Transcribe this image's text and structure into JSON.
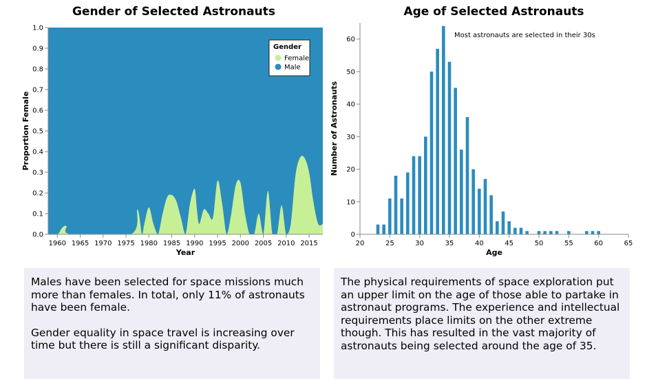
{
  "left": {
    "title": "Gender of Selected Astronauts",
    "text_paragraphs": [
      "Males have been selected for space missions much more than females. In total, only 11% of astronauts have been female.",
      "Gender equality in space travel is increasing over time but there is still a significant disparity."
    ]
  },
  "right": {
    "title": "Age of Selected Astronauts",
    "text_paragraphs": [
      "The physical requirements of space exploration put an upper limit on the age of those able to partake in astronaut programs. The experience and intellectual requirements place limits on the other extreme though. This has resulted in the vast majority of astronauts being selected around the age of 35."
    ]
  },
  "chart_data": [
    {
      "type": "area",
      "title": "Gender of Selected Astronauts",
      "xlabel": "Year",
      "ylabel": "Proportion Female",
      "xlim": [
        1958,
        2018
      ],
      "ylim": [
        0,
        1
      ],
      "xticks": [
        1960,
        1965,
        1970,
        1975,
        1980,
        1985,
        1990,
        1995,
        2000,
        2005,
        2010,
        2015
      ],
      "yticks": [
        0.0,
        0.1,
        0.2,
        0.3,
        0.4,
        0.5,
        0.6,
        0.7,
        0.8,
        0.9,
        1.0
      ],
      "legend": {
        "title": "Gender",
        "position": "top-right"
      },
      "series": [
        {
          "name": "Female",
          "color": "#c7ef96",
          "x": [
            1958,
            1960,
            1961,
            1962,
            1963,
            1976,
            1977.5,
            1978.5,
            1979,
            1980,
            1981,
            1982,
            1983,
            1984,
            1985,
            1986,
            1987,
            1988,
            1989,
            1990,
            1990.5,
            1991,
            1992,
            1993,
            1994,
            1995,
            1996,
            1997,
            1998,
            1999,
            2000,
            2001,
            2002,
            2003,
            2004,
            2005,
            2006,
            2007,
            2008,
            2009,
            2010,
            2011,
            2012,
            2013,
            2014,
            2015,
            2016,
            2017,
            2018
          ],
          "values": [
            0,
            0,
            0.03,
            0.04,
            0,
            0,
            0.12,
            0,
            0.05,
            0.13,
            0.05,
            0,
            0.1,
            0.18,
            0.19,
            0.16,
            0.08,
            0,
            0.15,
            0.22,
            0.12,
            0.05,
            0.12,
            0.1,
            0.08,
            0.26,
            0.15,
            0,
            0.1,
            0.24,
            0.25,
            0.1,
            0,
            0,
            0.1,
            0,
            0.21,
            0,
            0,
            0.14,
            0,
            0.05,
            0.28,
            0.37,
            0.37,
            0.3,
            0.15,
            0.05,
            0.05
          ]
        },
        {
          "name": "Male",
          "color": "#2b8cbe",
          "fill": "remainder"
        }
      ]
    },
    {
      "type": "bar",
      "title": "Age of Selected Astronauts",
      "xlabel": "Age",
      "ylabel": "Number of Astronauts",
      "xlim": [
        20,
        65
      ],
      "ylim": [
        0,
        65
      ],
      "xticks": [
        20,
        25,
        30,
        35,
        40,
        45,
        50,
        55,
        60,
        65
      ],
      "yticks": [
        0,
        10,
        20,
        30,
        40,
        50,
        60
      ],
      "color": "#2b8cbe",
      "ages": [
        23,
        24,
        25,
        26,
        27,
        28,
        29,
        30,
        31,
        32,
        33,
        34,
        35,
        36,
        37,
        38,
        39,
        40,
        41,
        42,
        43,
        44,
        45,
        46,
        47,
        48,
        50,
        51,
        52,
        53,
        55,
        58,
        59,
        60
      ],
      "values": [
        3,
        3,
        11,
        18,
        11,
        19,
        24,
        24,
        30,
        50,
        57,
        64,
        53,
        45,
        26,
        36,
        20,
        14,
        17,
        12,
        4,
        7,
        4,
        2,
        2,
        1,
        1,
        1,
        1,
        1,
        1,
        1,
        1,
        1
      ],
      "annotations": [
        {
          "text": "Most astronauts are selected in their 30s",
          "x": 35,
          "y": 62
        }
      ]
    }
  ]
}
